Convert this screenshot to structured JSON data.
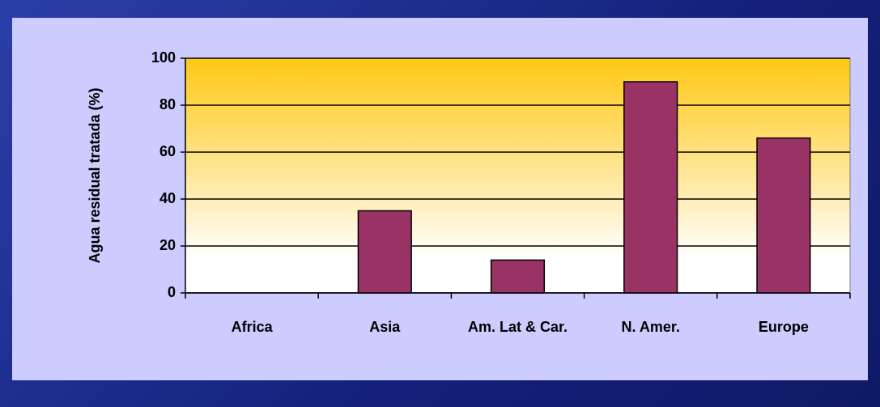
{
  "chart_data": {
    "type": "bar",
    "y_label": "Agua residual tratada (%)",
    "categories": [
      "Africa",
      "Asia",
      "Am. Lat & Car.",
      "N. Amer.",
      "Europe"
    ],
    "values": [
      0,
      35,
      14,
      90,
      66
    ],
    "color": "#993366",
    "ylim": [
      0,
      100
    ],
    "yticks": [
      0,
      20,
      40,
      60,
      80,
      100
    ],
    "grid": true
  }
}
